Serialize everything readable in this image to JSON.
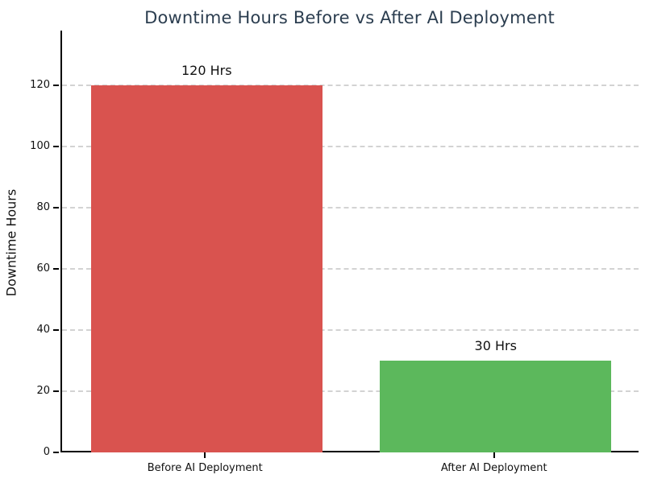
{
  "figure": {
    "title_color": "#2c3e50",
    "background": "#ffffff"
  },
  "chart_data": {
    "type": "bar",
    "title": "Downtime Hours Before vs After AI Deployment",
    "categories": [
      "Before AI Deployment",
      "After AI Deployment"
    ],
    "values": [
      120,
      30
    ],
    "bar_labels": [
      "120 Hrs",
      "30 Hrs"
    ],
    "bar_colors": [
      "#d9534f",
      "#5cb85c"
    ],
    "xlabel": "",
    "ylabel": "Downtime Hours",
    "ylim": [
      0,
      138
    ],
    "yticks": [
      0,
      20,
      40,
      60,
      80,
      100,
      120
    ],
    "grid": "horizontal-dashed",
    "gridline_color": "#cccccc",
    "legend": "none",
    "bar_width_fraction": 0.8
  }
}
